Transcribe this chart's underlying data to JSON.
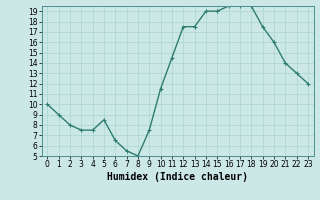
{
  "x": [
    0,
    1,
    2,
    3,
    4,
    5,
    6,
    7,
    8,
    9,
    10,
    11,
    12,
    13,
    14,
    15,
    16,
    17,
    18,
    19,
    20,
    21,
    22,
    23
  ],
  "y": [
    10,
    9,
    8,
    7.5,
    7.5,
    8.5,
    6.5,
    5.5,
    5,
    7.5,
    11.5,
    14.5,
    17.5,
    17.5,
    19,
    19,
    19.5,
    19.5,
    19.5,
    17.5,
    16,
    14,
    13,
    12
  ],
  "line_color": "#2e7d6e",
  "marker": "+",
  "bg_color": "#cce8e6",
  "grid_color": "#aad4d0",
  "xlabel": "Humidex (Indice chaleur)",
  "ylim": [
    5,
    19.5
  ],
  "xlim": [
    -0.5,
    23.5
  ],
  "yticks": [
    5,
    6,
    7,
    8,
    9,
    10,
    11,
    12,
    13,
    14,
    15,
    16,
    17,
    18,
    19
  ],
  "xticks": [
    0,
    1,
    2,
    3,
    4,
    5,
    6,
    7,
    8,
    9,
    10,
    11,
    12,
    13,
    14,
    15,
    16,
    17,
    18,
    19,
    20,
    21,
    22,
    23
  ],
  "xlabel_fontsize": 7,
  "tick_fontsize": 5.5,
  "linewidth": 1.0,
  "markersize": 3,
  "fig_width": 3.2,
  "fig_height": 2.0,
  "dpi": 100
}
